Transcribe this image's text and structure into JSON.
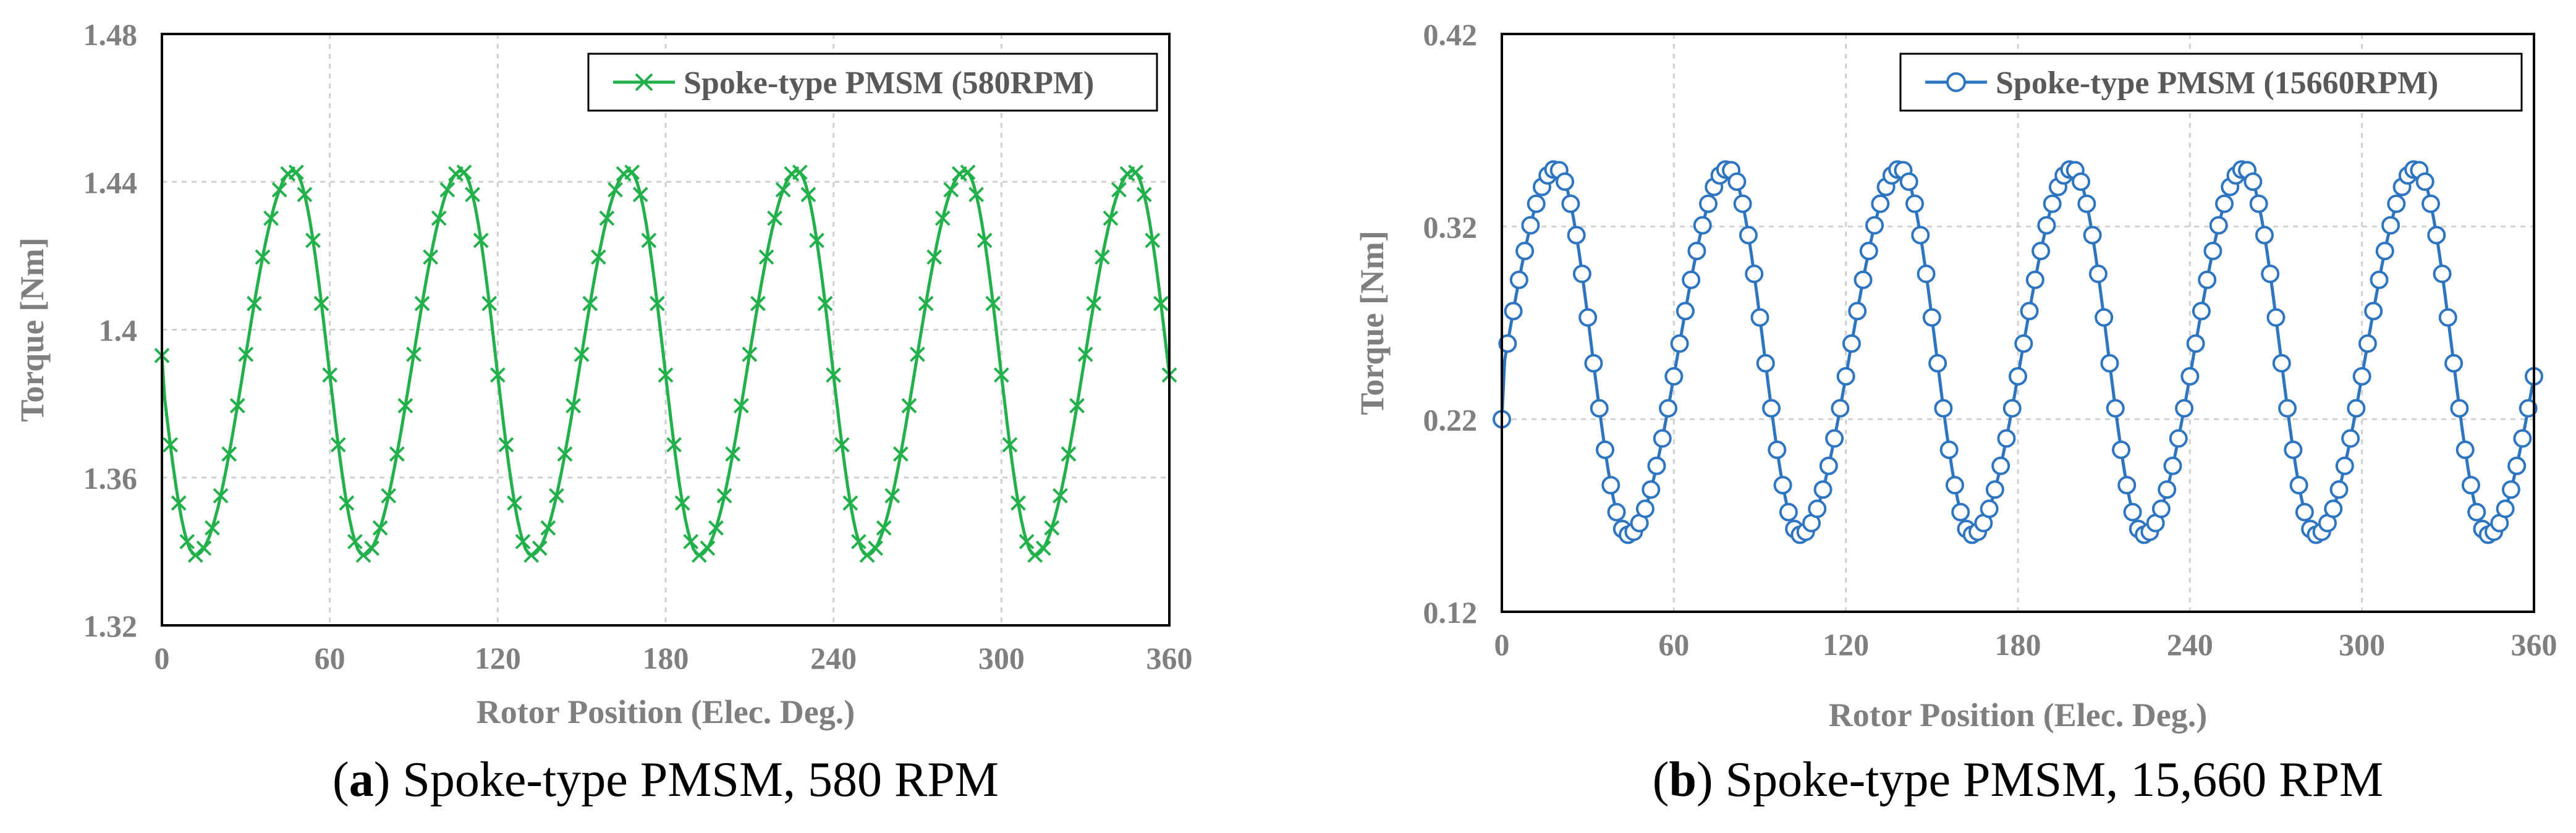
{
  "colors": {
    "green": "#22b04b",
    "blue": "#2e75c1",
    "grid": "#d0d0d0",
    "frame": "#000000",
    "text": "#7f7f7f"
  },
  "chart_data": [
    {
      "type": "line",
      "marker": "x",
      "ylabel": "Torque [Nm]",
      "xlabel": "Rotor Position (Elec. Deg.)",
      "xlim": [
        0,
        360
      ],
      "ylim": [
        1.32,
        1.48
      ],
      "xticks": [
        "0",
        "60",
        "120",
        "180",
        "240",
        "300",
        "360"
      ],
      "yticks": [
        "1.32",
        "1.36",
        "1.4",
        "1.44",
        "1.48"
      ],
      "legend": "top-right",
      "grid": true,
      "series": [
        {
          "name": "Spoke-type PMSM (580RPM)",
          "color": "#22b04b",
          "wave": {
            "period": 60,
            "min": 1.339,
            "max": 1.443,
            "min_at": 12,
            "max_at": 47,
            "start": 1.393,
            "step": 3
          }
        }
      ],
      "caption": {
        "letter": "a",
        "text": "Spoke-type PMSM, 580 RPM"
      }
    },
    {
      "type": "line",
      "marker": "o",
      "ylabel": "Torque [Nm]",
      "xlabel": "Rotor Position (Elec. Deg.)",
      "xlim": [
        0,
        360
      ],
      "ylim": [
        0.12,
        0.42
      ],
      "xticks": [
        "0",
        "60",
        "120",
        "180",
        "240",
        "300",
        "360"
      ],
      "yticks": [
        "0.12",
        "0.22",
        "0.32",
        "0.42"
      ],
      "legend": "top-right",
      "grid": true,
      "series": [
        {
          "name": "Spoke-type PMSM (15660RPM)",
          "color": "#2e75c1",
          "wave": {
            "period": 60,
            "min": 0.16,
            "max": 0.35,
            "min_at": 44,
            "max_at": 19,
            "start": 0.22,
            "step": 2
          }
        }
      ],
      "caption": {
        "letter": "b",
        "text": "Spoke-type PMSM, 15,660 RPM"
      }
    }
  ]
}
